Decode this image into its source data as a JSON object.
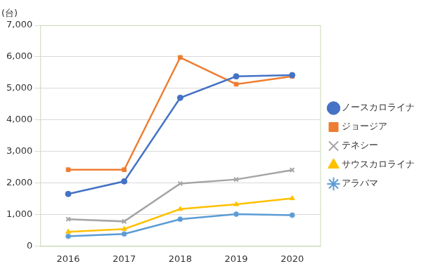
{
  "chart_data": {
    "type": "line",
    "y_label": "(台)",
    "categories": [
      "2016",
      "2017",
      "2018",
      "2019",
      "2020"
    ],
    "series": [
      {
        "name": "ノースカロライナ",
        "color": "#4472c4",
        "marker": "circle",
        "values": [
          1650,
          2050,
          4700,
          5380,
          5420
        ]
      },
      {
        "name": "ジョージア",
        "color": "#ed7d31",
        "marker": "square",
        "values": [
          2420,
          2420,
          5980,
          5130,
          5380
        ]
      },
      {
        "name": "テネシー",
        "color": "#a5a5a5",
        "marker": "x",
        "values": [
          850,
          780,
          1980,
          2110,
          2410
        ]
      },
      {
        "name": "サウスカロライナ",
        "color": "#ffc000",
        "marker": "triangle",
        "values": [
          450,
          540,
          1170,
          1320,
          1510
        ]
      },
      {
        "name": "アラバマ",
        "color": "#5b9bd5",
        "marker": "star",
        "values": [
          310,
          380,
          850,
          1010,
          980
        ]
      }
    ],
    "ylim": [
      0,
      7000
    ],
    "yticks": [
      0,
      {
        "value": 1000,
        "label": "1,000"
      },
      {
        "value": 2000,
        "label": "2,000"
      },
      {
        "value": 3000,
        "label": "3,000"
      },
      {
        "value": 4000,
        "label": "4,000"
      },
      {
        "value": 5000,
        "label": "5,000"
      },
      {
        "value": 6000,
        "label": "6,000"
      },
      {
        "value": 7000,
        "label": "7,000"
      }
    ],
    "grid": true,
    "legend": "right"
  }
}
